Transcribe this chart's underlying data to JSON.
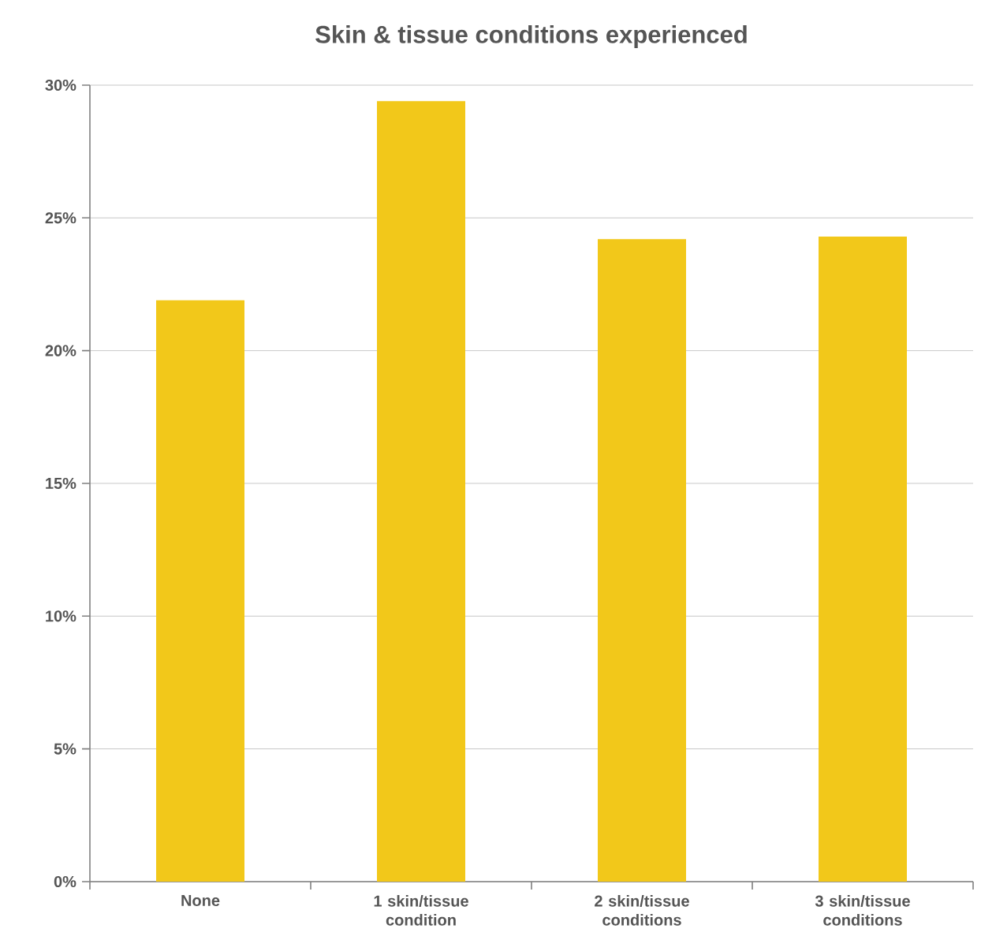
{
  "chart_data": {
    "type": "bar",
    "title": "Skin & tissue conditions experienced",
    "categories": [
      "None",
      "1 skin/tissue condition",
      "2 skin/tissue conditions",
      "3 skin/tissue conditions"
    ],
    "values": [
      21.9,
      29.4,
      24.2,
      24.3
    ],
    "color": "#f2c81a",
    "ylim": [
      0,
      30
    ],
    "yticks": [
      {
        "value": 0,
        "label": "0%"
      },
      {
        "value": 5,
        "label": "5%"
      },
      {
        "value": 10,
        "label": "10%"
      },
      {
        "value": 15,
        "label": "15%"
      },
      {
        "value": 20,
        "label": "20%"
      },
      {
        "value": 25,
        "label": "25%"
      },
      {
        "value": 30,
        "label": "30%"
      }
    ],
    "grid": "y"
  }
}
